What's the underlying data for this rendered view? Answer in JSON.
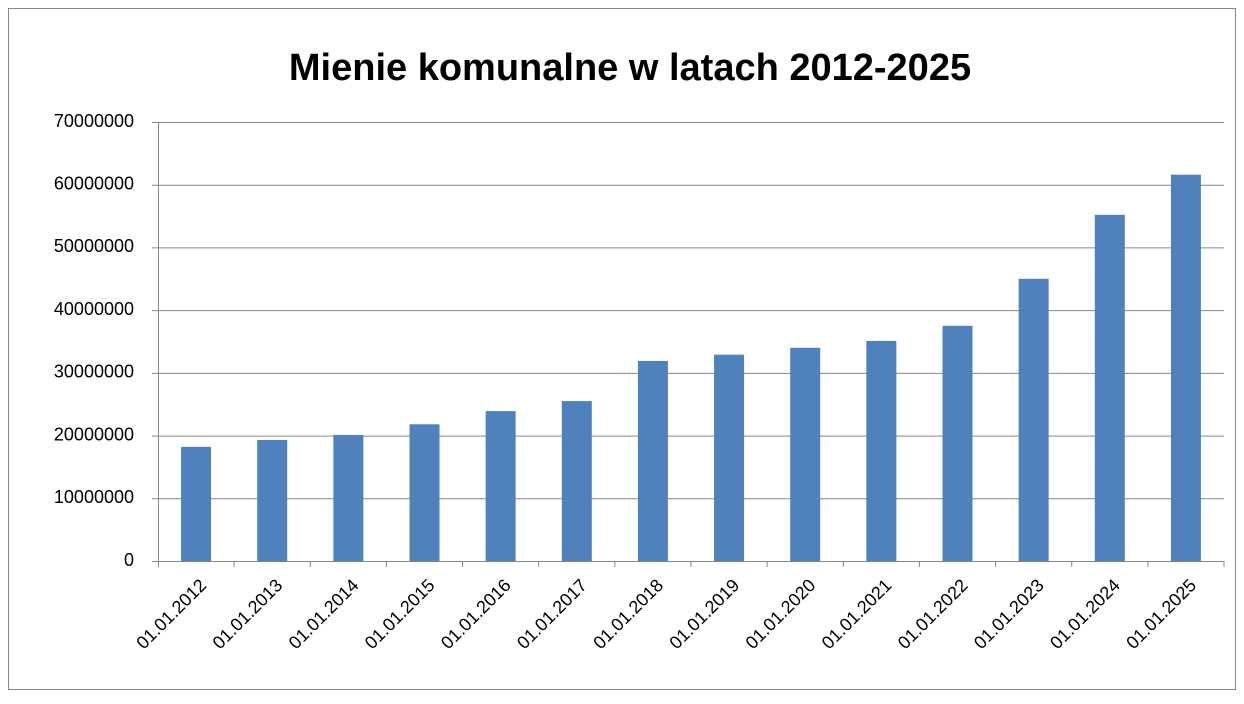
{
  "chart_data": {
    "type": "bar",
    "title": "Mienie komunalne w latach 2012-2025",
    "categories": [
      "01.01.2012",
      "01.01.2013",
      "01.01.2014",
      "01.01.2015",
      "01.01.2016",
      "01.01.2017",
      "01.01.2018",
      "01.01.2019",
      "01.01.2020",
      "01.01.2021",
      "01.01.2022",
      "01.01.2023",
      "01.01.2024",
      "01.01.2025"
    ],
    "values": [
      18200000,
      19300000,
      20100000,
      21800000,
      23900000,
      25500000,
      31900000,
      32900000,
      34000000,
      35100000,
      37500000,
      45000000,
      55200000,
      61600000
    ],
    "color": "#4f81bd",
    "ylim": [
      0,
      70000000
    ],
    "yticks": [
      0,
      10000000,
      20000000,
      30000000,
      40000000,
      50000000,
      60000000,
      70000000
    ],
    "grid": true
  }
}
